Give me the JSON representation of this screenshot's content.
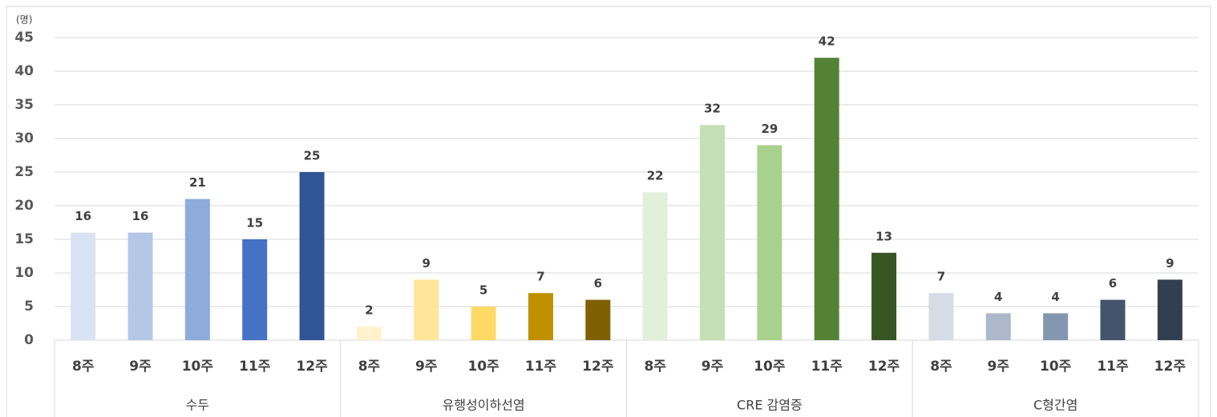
{
  "chart_data": {
    "type": "grouped_bar",
    "y_unit": "(명)",
    "ylim": [
      0,
      45
    ],
    "yticks": [
      0,
      5,
      10,
      15,
      20,
      25,
      30,
      35,
      40,
      45
    ],
    "grid": true,
    "groups": [
      {
        "name": "수두",
        "categories": [
          "8주",
          "9주",
          "10주",
          "11주",
          "12주"
        ],
        "values": [
          16,
          16,
          21,
          15,
          25
        ],
        "colors": [
          "#dae3f3",
          "#b4c7e7",
          "#8faadc",
          "#4472c4",
          "#2f5597"
        ]
      },
      {
        "name": "유행성이하선염",
        "categories": [
          "8주",
          "9주",
          "10주",
          "11주",
          "12주"
        ],
        "values": [
          2,
          9,
          5,
          7,
          6
        ],
        "colors": [
          "#fff2cc",
          "#ffe699",
          "#ffd966",
          "#bf9000",
          "#7f6000"
        ]
      },
      {
        "name": "CRE 감염증",
        "categories": [
          "8주",
          "9주",
          "10주",
          "11주",
          "12주"
        ],
        "values": [
          22,
          32,
          29,
          42,
          13
        ],
        "colors": [
          "#e2efda",
          "#c5e0b4",
          "#a9d18e",
          "#548235",
          "#375623"
        ]
      },
      {
        "name": "C형간염",
        "categories": [
          "8주",
          "9주",
          "10주",
          "11주",
          "12주"
        ],
        "values": [
          7,
          4,
          4,
          6,
          9
        ],
        "colors": [
          "#d6dce5",
          "#adb9ca",
          "#8497b0",
          "#44546a",
          "#333f50"
        ]
      }
    ]
  }
}
